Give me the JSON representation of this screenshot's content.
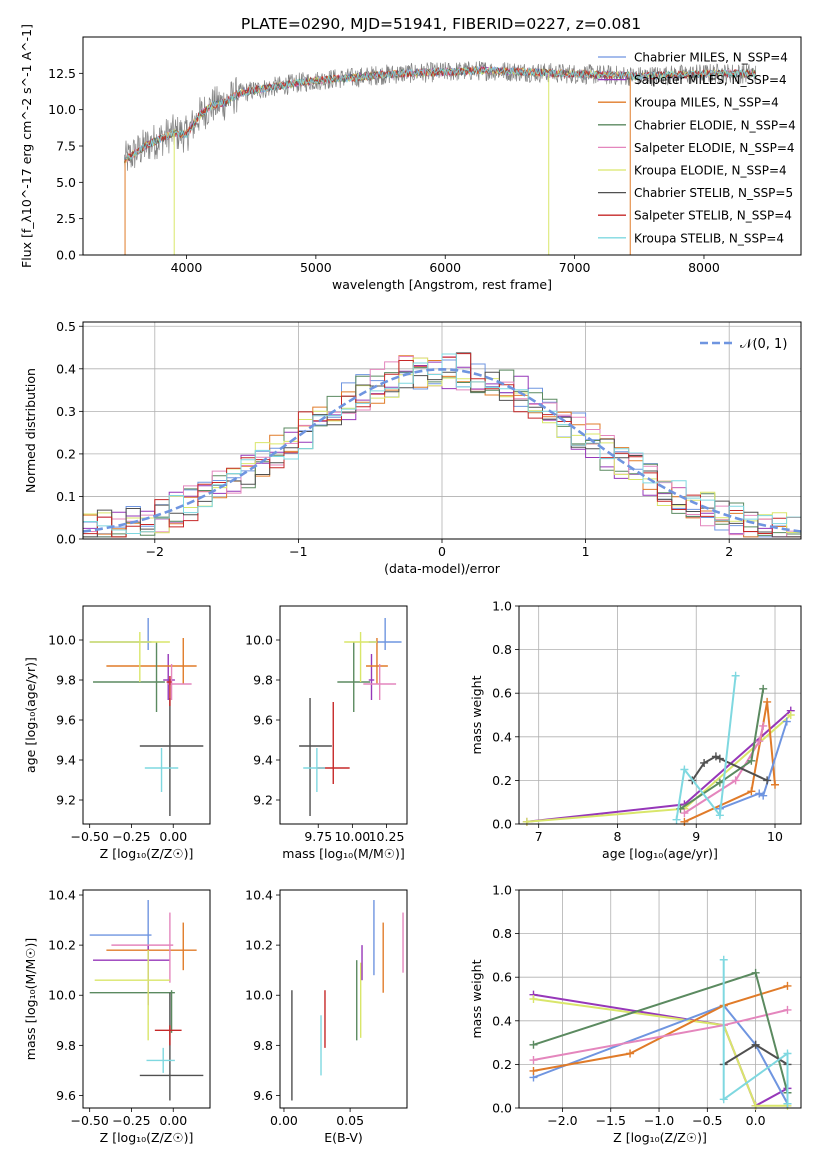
{
  "figure_title": "PLATE=0290, MJD=51941, FIBERID=0227, z=0.081",
  "colors": {
    "chabrier_miles": "#6f95e0",
    "salpeter_miles": "#9637b9",
    "kroupa_miles": "#e07b29",
    "chabrier_elodie": "#5b8a60",
    "salpeter_elodie": "#e486bd",
    "kroupa_elodie": "#d9e66a",
    "chabrier_stelib": "#505050",
    "salpeter_stelib": "#c62828",
    "kroupa_stelib": "#7fd8e0",
    "spectrum": "#808080",
    "gaussian": "#6f95e0"
  },
  "chart_data": [
    {
      "id": "spectrum",
      "type": "line",
      "title": "",
      "xlabel": "wavelength [Angstrom, rest frame]",
      "ylabel": "Flux [f_λ10^-17 erg cm^-2 s^-1 A^-1]",
      "xlim": [
        3200,
        8750
      ],
      "ylim": [
        0,
        15
      ],
      "xticks": [
        "4000",
        "5000",
        "6000",
        "7000",
        "8000"
      ],
      "yticks": [
        "0.0",
        "2.5",
        "5.0",
        "7.5",
        "10.0",
        "12.5"
      ],
      "grid": false,
      "legend_position": "right",
      "legend": [
        {
          "label": "Chabrier MILES, N_SSP=4",
          "color_key": "chabrier_miles"
        },
        {
          "label": "Salpeter MILES, N_SSP=4",
          "color_key": "salpeter_miles"
        },
        {
          "label": "Kroupa MILES, N_SSP=4",
          "color_key": "kroupa_miles"
        },
        {
          "label": "Chabrier ELODIE, N_SSP=4",
          "color_key": "chabrier_elodie"
        },
        {
          "label": "Salpeter ELODIE, N_SSP=4",
          "color_key": "salpeter_elodie"
        },
        {
          "label": "Kroupa ELODIE, N_SSP=4",
          "color_key": "kroupa_elodie"
        },
        {
          "label": "Chabrier STELIB, N_SSP=5",
          "color_key": "chabrier_stelib"
        },
        {
          "label": "Salpeter STELIB, N_SSP=4",
          "color_key": "salpeter_stelib"
        },
        {
          "label": "Kroupa STELIB, N_SSP=4",
          "color_key": "kroupa_stelib"
        }
      ],
      "continuum": [
        [
          3520,
          6.5
        ],
        [
          3600,
          7.0
        ],
        [
          3700,
          7.6
        ],
        [
          3800,
          8.0
        ],
        [
          3900,
          8.4
        ],
        [
          4000,
          8.3
        ],
        [
          4100,
          9.6
        ],
        [
          4200,
          10.3
        ],
        [
          4300,
          10.5
        ],
        [
          4400,
          11.1
        ],
        [
          4500,
          11.3
        ],
        [
          4700,
          11.6
        ],
        [
          4900,
          11.9
        ],
        [
          5100,
          12.1
        ],
        [
          5300,
          12.2
        ],
        [
          5500,
          12.4
        ],
        [
          5700,
          12.5
        ],
        [
          6000,
          12.6
        ],
        [
          6300,
          12.7
        ],
        [
          6600,
          12.6
        ],
        [
          6900,
          12.5
        ],
        [
          7200,
          12.4
        ],
        [
          7500,
          12.3
        ],
        [
          7800,
          12.4
        ],
        [
          8100,
          12.5
        ],
        [
          8400,
          12.5
        ]
      ]
    },
    {
      "id": "residuals",
      "type": "line",
      "xlabel": "(data-model)/error",
      "ylabel": "Normed distribution",
      "xlim": [
        -2.5,
        2.5
      ],
      "ylim": [
        0,
        0.51
      ],
      "xticks": [
        "−2",
        "−1",
        "0",
        "1",
        "2"
      ],
      "yticks": [
        "0.0",
        "0.1",
        "0.2",
        "0.3",
        "0.4",
        "0.5"
      ],
      "grid": true,
      "legend_position": "upper right",
      "gaussian_label": "𝒩(0, 1)",
      "gaussian": {
        "mean": 0,
        "sigma": 1
      }
    },
    {
      "id": "age-vs-z",
      "type": "scatter",
      "xlabel": "Z [log₁₀(Z/Z☉)]",
      "ylabel": "age  [log₁₀(age/yr)]",
      "xlim": [
        -0.54,
        0.22
      ],
      "ylim": [
        9.08,
        10.17
      ],
      "xticks": [
        "−0.50",
        "−0.25",
        "0.00"
      ],
      "yticks": [
        "9.2",
        "9.4",
        "9.6",
        "9.8",
        "10.0"
      ],
      "grid": false,
      "points": [
        {
          "color_key": "chabrier_miles",
          "x": -0.15,
          "xerr": [
            0.35,
            0.02
          ],
          "y": 9.99,
          "yerr": [
            0.04,
            0.12
          ]
        },
        {
          "color_key": "salpeter_miles",
          "x": -0.03,
          "xerr": [
            0.03,
            0.04
          ],
          "y": 9.8,
          "yerr": [
            0.1,
            0.13
          ]
        },
        {
          "color_key": "kroupa_miles",
          "x": 0.06,
          "xerr": [
            0.46,
            0.08
          ],
          "y": 9.87,
          "yerr": [
            0.09,
            0.14
          ]
        },
        {
          "color_key": "chabrier_elodie",
          "x": -0.1,
          "xerr": [
            0.38,
            0.05
          ],
          "y": 9.79,
          "yerr": [
            0.15,
            0.2
          ]
        },
        {
          "color_key": "salpeter_elodie",
          "x": -0.01,
          "xerr": [
            0.02,
            0.12
          ],
          "y": 9.78,
          "yerr": [
            0.08,
            0.1
          ]
        },
        {
          "color_key": "kroupa_elodie",
          "x": -0.2,
          "xerr": [
            0.3,
            0.18
          ],
          "y": 9.99,
          "yerr": [
            0.2,
            0.05
          ]
        },
        {
          "color_key": "chabrier_stelib",
          "x": -0.02,
          "xerr": [
            0.18,
            0.2
          ],
          "y": 9.47,
          "yerr": [
            0.35,
            0.24
          ]
        },
        {
          "color_key": "salpeter_stelib",
          "x": -0.02,
          "xerr": [
            0.02,
            0.01
          ],
          "y": 9.79,
          "yerr": [
            0.12,
            0.03
          ]
        },
        {
          "color_key": "kroupa_stelib",
          "x": -0.07,
          "xerr": [
            0.1,
            0.1
          ],
          "y": 9.36,
          "yerr": [
            0.12,
            0.1
          ]
        }
      ]
    },
    {
      "id": "age-vs-mass",
      "type": "scatter",
      "xlabel": "mass [log₁₀(M/M☉)]",
      "ylabel": "",
      "xlim": [
        9.47,
        10.4
      ],
      "ylim": [
        9.08,
        10.17
      ],
      "xticks": [
        "9.75",
        "10.00",
        "10.25"
      ],
      "yticks": [
        "9.2",
        "9.4",
        "9.6",
        "9.8",
        "10.0"
      ],
      "grid": false,
      "points": [
        {
          "color_key": "chabrier_miles",
          "x": 10.24,
          "xerr": [
            0.12,
            0.12
          ],
          "y": 9.99,
          "yerr": [
            0.04,
            0.12
          ]
        },
        {
          "color_key": "salpeter_miles",
          "x": 10.14,
          "xerr": [
            0.02,
            0.02
          ],
          "y": 9.8,
          "yerr": [
            0.1,
            0.13
          ]
        },
        {
          "color_key": "kroupa_miles",
          "x": 10.18,
          "xerr": [
            0.08,
            0.08
          ],
          "y": 9.87,
          "yerr": [
            0.09,
            0.14
          ]
        },
        {
          "color_key": "chabrier_elodie",
          "x": 10.01,
          "xerr": [
            0.12,
            0.12
          ],
          "y": 9.79,
          "yerr": [
            0.15,
            0.2
          ]
        },
        {
          "color_key": "salpeter_elodie",
          "x": 10.2,
          "xerr": [
            0.12,
            0.12
          ],
          "y": 9.78,
          "yerr": [
            0.08,
            0.1
          ]
        },
        {
          "color_key": "kroupa_elodie",
          "x": 10.06,
          "xerr": [
            0.12,
            0.12
          ],
          "y": 9.99,
          "yerr": [
            0.2,
            0.05
          ]
        },
        {
          "color_key": "chabrier_stelib",
          "x": 9.69,
          "xerr": [
            0.08,
            0.16
          ],
          "y": 9.47,
          "yerr": [
            0.35,
            0.24
          ]
        },
        {
          "color_key": "salpeter_stelib",
          "x": 9.86,
          "xerr": [
            0.12,
            0.12
          ],
          "y": 9.36,
          "yerr": [
            0.08,
            0.33
          ]
        },
        {
          "color_key": "kroupa_stelib",
          "x": 9.74,
          "xerr": [
            0.1,
            0.06
          ],
          "y": 9.36,
          "yerr": [
            0.12,
            0.1
          ]
        }
      ]
    },
    {
      "id": "massweight-vs-age",
      "type": "line",
      "xlabel": "age  [log₁₀(age/yr)]",
      "ylabel": "mass weight",
      "xlim": [
        6.75,
        10.33
      ],
      "ylim": [
        0,
        1.0
      ],
      "xticks": [
        "7",
        "8",
        "9",
        "10"
      ],
      "yticks": [
        "0.0",
        "0.2",
        "0.4",
        "0.6",
        "0.8",
        "1.0"
      ],
      "grid": true,
      "series": [
        {
          "color_key": "salpeter_miles",
          "x": [
            6.85,
            8.85,
            10.2
          ],
          "y": [
            0.01,
            0.09,
            0.52
          ]
        },
        {
          "color_key": "kroupa_elodie",
          "x": [
            6.85,
            8.85,
            10.2
          ],
          "y": [
            0.01,
            0.07,
            0.5
          ]
        },
        {
          "color_key": "kroupa_miles",
          "x": [
            8.85,
            9.7,
            9.9,
            10.0
          ],
          "y": [
            0.01,
            0.15,
            0.56,
            0.18
          ]
        },
        {
          "color_key": "chabrier_miles",
          "x": [
            9.3,
            9.8,
            9.85,
            10.15
          ],
          "y": [
            0.07,
            0.14,
            0.13,
            0.47
          ]
        },
        {
          "color_key": "salpeter_elodie",
          "x": [
            8.85,
            9.5,
            9.8,
            9.85
          ],
          "y": [
            0.05,
            0.2,
            0.38,
            0.45
          ]
        },
        {
          "color_key": "chabrier_elodie",
          "x": [
            8.8,
            9.3,
            9.7,
            9.85
          ],
          "y": [
            0.07,
            0.19,
            0.29,
            0.62
          ]
        },
        {
          "color_key": "chabrier_stelib",
          "x": [
            8.95,
            9.1,
            9.25,
            9.3,
            9.9
          ],
          "y": [
            0.2,
            0.28,
            0.31,
            0.3,
            0.2
          ]
        },
        {
          "color_key": "kroupa_stelib",
          "x": [
            8.75,
            8.85,
            9.3,
            9.5
          ],
          "y": [
            0.02,
            0.25,
            0.04,
            0.68
          ]
        }
      ]
    },
    {
      "id": "mass-vs-z",
      "type": "scatter",
      "xlabel": "Z [log₁₀(Z/Z☉)]",
      "ylabel": "mass [log₁₀(M/M☉)]",
      "xlim": [
        -0.54,
        0.22
      ],
      "ylim": [
        9.55,
        10.42
      ],
      "xticks": [
        "−0.50",
        "−0.25",
        "0.00"
      ],
      "yticks": [
        "9.6",
        "9.8",
        "10.0",
        "10.2",
        "10.4"
      ],
      "grid": false,
      "points": [
        {
          "color_key": "chabrier_miles",
          "x": -0.15,
          "xerr": [
            0.35,
            0.02
          ],
          "y": 10.24,
          "yerr": [
            0.1,
            0.14
          ]
        },
        {
          "color_key": "salpeter_miles",
          "x": -0.15,
          "xerr": [
            0.33,
            0.13
          ],
          "y": 10.14,
          "yerr": [
            0.18,
            0.06
          ]
        },
        {
          "color_key": "kroupa_miles",
          "x": 0.06,
          "xerr": [
            0.46,
            0.08
          ],
          "y": 10.18,
          "yerr": [
            0.08,
            0.11
          ]
        },
        {
          "color_key": "chabrier_elodie",
          "x": -0.01,
          "xerr": [
            0.49,
            0.02
          ],
          "y": 10.01,
          "yerr": [
            0.16,
            0.01
          ]
        },
        {
          "color_key": "salpeter_elodie",
          "x": -0.02,
          "xerr": [
            0.35,
            0.02
          ],
          "y": 10.2,
          "yerr": [
            0.15,
            0.13
          ]
        },
        {
          "color_key": "kroupa_elodie",
          "x": -0.15,
          "xerr": [
            0.32,
            0.13
          ],
          "y": 10.06,
          "yerr": [
            0.24,
            0.12
          ]
        },
        {
          "color_key": "chabrier_stelib",
          "x": -0.02,
          "xerr": [
            0.18,
            0.2
          ],
          "y": 9.68,
          "yerr": [
            0.1,
            0.33
          ]
        },
        {
          "color_key": "salpeter_stelib",
          "x": -0.02,
          "xerr": [
            0.09,
            0.07
          ],
          "y": 9.86,
          "yerr": [
            0.06,
            0.02
          ]
        },
        {
          "color_key": "kroupa_stelib",
          "x": -0.06,
          "xerr": [
            0.1,
            0.07
          ],
          "y": 9.74,
          "yerr": [
            0.05,
            0.05
          ]
        }
      ]
    },
    {
      "id": "mass-vs-ebv",
      "type": "scatter",
      "xlabel": "E(B-V)",
      "ylabel": "",
      "xlim": [
        -0.003,
        0.093
      ],
      "ylim": [
        9.55,
        10.42
      ],
      "xticks": [
        "0.00",
        "0.05"
      ],
      "yticks": [
        "9.6",
        "9.8",
        "10.0",
        "10.2",
        "10.4"
      ],
      "grid": false,
      "points": [
        {
          "color_key": "chabrier_stelib",
          "x": 0.006,
          "y": 9.8,
          "yerr": [
            0.22,
            0.22
          ]
        },
        {
          "color_key": "kroupa_stelib",
          "x": 0.028,
          "y": 9.8,
          "yerr": [
            0.12,
            0.12
          ]
        },
        {
          "color_key": "salpeter_stelib",
          "x": 0.031,
          "y": 9.9,
          "yerr": [
            0.11,
            0.12
          ]
        },
        {
          "color_key": "chabrier_elodie",
          "x": 0.055,
          "y": 9.98,
          "yerr": [
            0.16,
            0.16
          ]
        },
        {
          "color_key": "kroupa_elodie",
          "x": 0.058,
          "y": 9.98,
          "yerr": [
            0.15,
            0.15
          ]
        },
        {
          "color_key": "salpeter_miles",
          "x": 0.059,
          "y": 10.13,
          "yerr": [
            0.07,
            0.07
          ]
        },
        {
          "color_key": "chabrier_miles",
          "x": 0.068,
          "y": 10.23,
          "yerr": [
            0.15,
            0.15
          ]
        },
        {
          "color_key": "kroupa_miles",
          "x": 0.075,
          "y": 10.15,
          "yerr": [
            0.14,
            0.14
          ]
        },
        {
          "color_key": "salpeter_elodie",
          "x": 0.09,
          "y": 10.21,
          "yerr": [
            0.12,
            0.12
          ]
        }
      ]
    },
    {
      "id": "massweight-vs-z",
      "type": "line",
      "xlabel": "Z [log₁₀(Z/Z☉)]",
      "ylabel": "mass weight",
      "xlim": [
        -2.45,
        0.47
      ],
      "ylim": [
        0,
        1.0
      ],
      "xticks": [
        "−2.0",
        "−1.5",
        "−1.0",
        "−0.5",
        "0.0"
      ],
      "yticks": [
        "0.0",
        "0.2",
        "0.4",
        "0.6",
        "0.8",
        "1.0"
      ],
      "grid": true,
      "series": [
        {
          "color_key": "salpeter_miles",
          "x": [
            -2.3,
            -0.33,
            0.0,
            0.33
          ],
          "y": [
            0.52,
            0.38,
            0.01,
            0.09
          ]
        },
        {
          "color_key": "kroupa_elodie",
          "x": [
            -2.3,
            -0.33,
            0.0,
            0.33
          ],
          "y": [
            0.5,
            0.38,
            0.01,
            0.01
          ]
        },
        {
          "color_key": "chabrier_miles",
          "x": [
            -2.3,
            -0.33,
            0.0,
            0.33
          ],
          "y": [
            0.14,
            0.47,
            0.29,
            0.02
          ]
        },
        {
          "color_key": "kroupa_miles",
          "x": [
            -2.3,
            -1.3,
            -0.33,
            0.33
          ],
          "y": [
            0.17,
            0.25,
            0.47,
            0.56
          ]
        },
        {
          "color_key": "salpeter_elodie",
          "x": [
            -2.3,
            -0.33,
            0.33
          ],
          "y": [
            0.22,
            0.38,
            0.45
          ]
        },
        {
          "color_key": "chabrier_elodie",
          "x": [
            -2.3,
            0.0,
            0.33
          ],
          "y": [
            0.29,
            0.62,
            0.07
          ]
        },
        {
          "color_key": "chabrier_stelib",
          "x": [
            -0.33,
            0.0,
            0.33
          ],
          "y": [
            0.2,
            0.29,
            0.2
          ]
        },
        {
          "color_key": "kroupa_stelib",
          "x": [
            -0.33,
            -0.33,
            0.33,
            0.33
          ],
          "y": [
            0.68,
            0.04,
            0.25,
            0.02
          ]
        }
      ]
    }
  ]
}
